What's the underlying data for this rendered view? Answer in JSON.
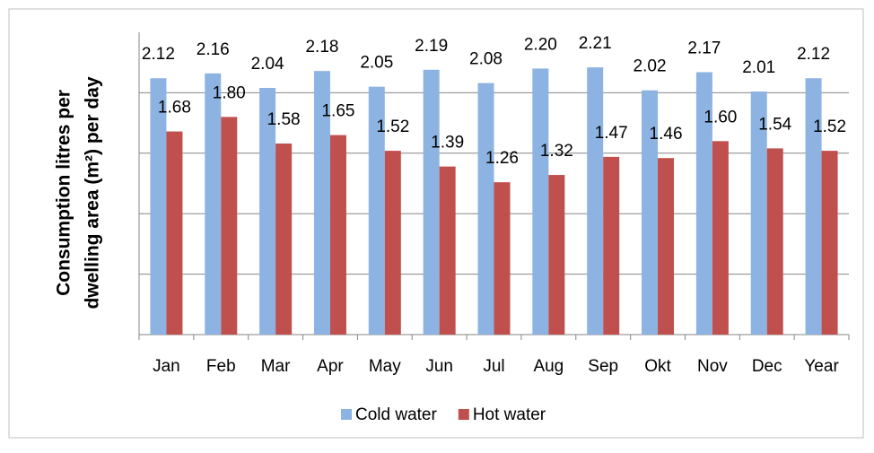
{
  "chart_data": {
    "type": "bar",
    "ylabel": [
      "Consumption litres per",
      "dwelling area (m²) per day"
    ],
    "categories": [
      "Jan",
      "Feb",
      "Mar",
      "Apr",
      "May",
      "Jun",
      "Jul",
      "Aug",
      "Sep",
      "Okt",
      "Nov",
      "Dec",
      "Year"
    ],
    "series": [
      {
        "name": "Cold water",
        "color": "#8db3e2",
        "values": [
          2.12,
          2.16,
          2.04,
          2.18,
          2.05,
          2.19,
          2.08,
          2.2,
          2.21,
          2.02,
          2.17,
          2.01,
          2.12
        ],
        "value_labels": [
          "2.12",
          "2.16",
          "2.04",
          "2.18",
          "2.05",
          "2.19",
          "2.08",
          "2.20",
          "2.21",
          "2.02",
          "2.17",
          "2.01",
          "2.12"
        ]
      },
      {
        "name": "Hot water",
        "color": "#c0504d",
        "values": [
          1.68,
          1.8,
          1.58,
          1.65,
          1.52,
          1.39,
          1.26,
          1.32,
          1.47,
          1.46,
          1.6,
          1.54,
          1.52
        ],
        "value_labels": [
          "1.68",
          "1.80",
          "1.58",
          "1.65",
          "1.52",
          "1.39",
          "1.26",
          "1.32",
          "1.47",
          "1.46",
          "1.60",
          "1.54",
          "1.52"
        ]
      }
    ],
    "ylim": [
      0,
      2.5
    ],
    "yticks": [
      0,
      0.5,
      1,
      1.5,
      2
    ],
    "grid": true,
    "legend": "bottom"
  }
}
